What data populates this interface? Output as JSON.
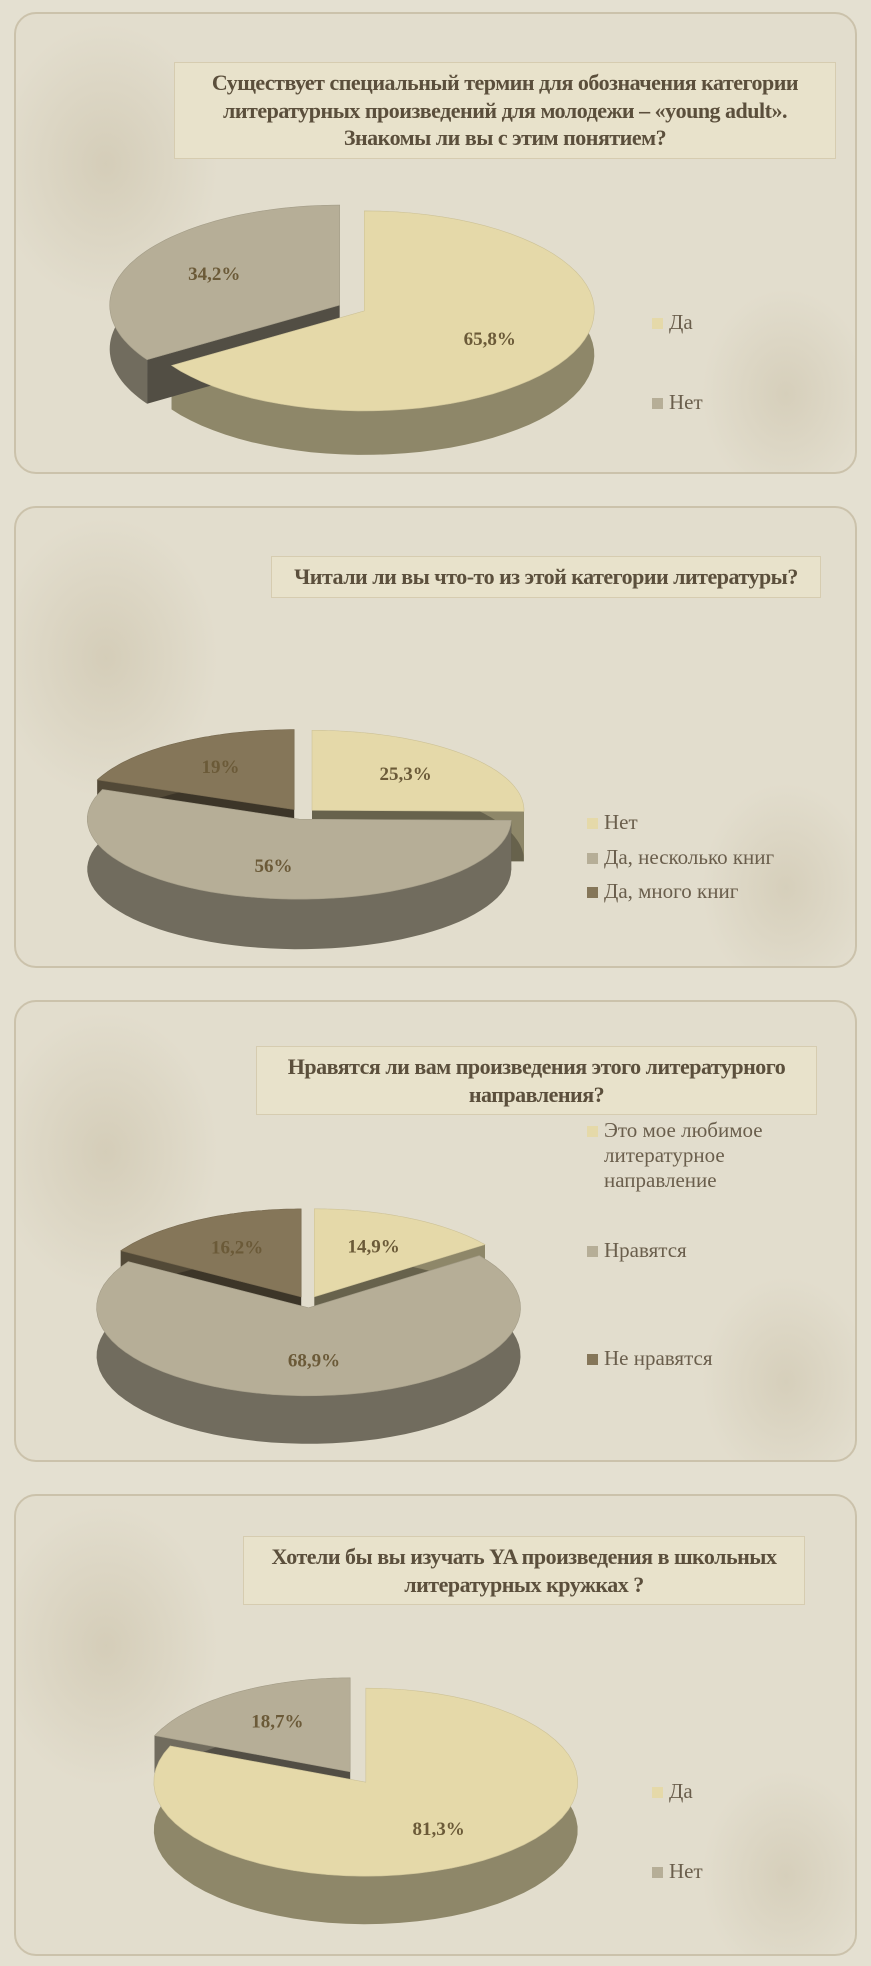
{
  "chart_data": [
    {
      "type": "pie",
      "title": "Существует специальный термин для обозначения категории литературных произведений для молодежи – «young adult». Знакомы ли вы с этим понятием?",
      "categories": [
        "Да",
        "Нет"
      ],
      "values": [
        65.8,
        34.2
      ],
      "value_labels": [
        "65,8%",
        "34,2%"
      ],
      "colors": [
        "#e5d9a9",
        "#b6ae97"
      ]
    },
    {
      "type": "pie",
      "title": "Читали ли вы что-то из этой категории литературы?",
      "categories": [
        "Нет",
        "Да, несколько книг",
        "Да, много книг"
      ],
      "values": [
        25.3,
        56,
        19
      ],
      "value_labels": [
        "25,3%",
        "56%",
        "19%"
      ],
      "colors": [
        "#e5d9a9",
        "#b6ae97",
        "#857659"
      ]
    },
    {
      "type": "pie",
      "title": "Нравятся ли вам произведения этого литературного направления?",
      "categories": [
        "Это мое любимое литературное направление",
        "Нравятся",
        "Не нравятся"
      ],
      "values": [
        14.9,
        68.9,
        16.2
      ],
      "value_labels": [
        "14,9%",
        "68,9%",
        "16,2%"
      ],
      "colors": [
        "#e5d9a9",
        "#b6ae97",
        "#857659"
      ]
    },
    {
      "type": "pie",
      "title": "Хотели бы вы изучать YA произведения в школьных литературных кружках ?",
      "categories": [
        "Да",
        "Нет"
      ],
      "values": [
        81.3,
        18.7
      ],
      "value_labels": [
        "81,3%",
        "18,7%"
      ],
      "colors": [
        "#e5d9a9",
        "#b6ae97"
      ]
    }
  ]
}
